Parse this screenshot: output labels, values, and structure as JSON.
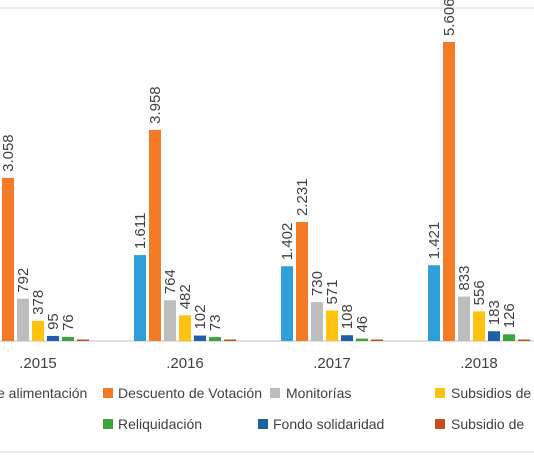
{
  "chart_data": {
    "type": "bar",
    "categories": [
      ".2015",
      ".2016",
      ".2017",
      ".2018"
    ],
    "series": [
      {
        "name": "Subsidio de alimentación",
        "legend_text": "e alimentación",
        "color": "#2E9FD8",
        "values": [
          null,
          1611,
          1402,
          1421
        ],
        "labels": [
          "",
          "1.611",
          "1.402",
          "1.421"
        ]
      },
      {
        "name": "Descuento de Votación",
        "legend_text": "Descuento de Votación",
        "color": "#F47B25",
        "values": [
          3058,
          3958,
          2231,
          5606
        ],
        "labels": [
          "3.058",
          "3.958",
          "2.231",
          "5.606"
        ]
      },
      {
        "name": "Monitorías",
        "legend_text": "Monitorías",
        "color": "#BDBDBD",
        "values": [
          792,
          764,
          730,
          833
        ],
        "labels": [
          "792",
          "764",
          "730",
          "833"
        ]
      },
      {
        "name": "Subsidios de",
        "legend_text": "Subsidios de",
        "color": "#FFC20E",
        "values": [
          378,
          482,
          571,
          556
        ],
        "labels": [
          "378",
          "482",
          "571",
          "556"
        ]
      },
      {
        "name": "Fondo solidaridad",
        "legend_text": "Fondo solidaridad",
        "color": "#1F5FA8",
        "values": [
          95,
          102,
          108,
          183
        ],
        "labels": [
          "95",
          "102",
          "108",
          "183"
        ]
      },
      {
        "name": "Reliquidación",
        "legend_text": "Reliquidación",
        "color": "#3BA53B",
        "values": [
          76,
          73,
          46,
          126
        ],
        "labels": [
          "76",
          "73",
          "46",
          "126"
        ]
      },
      {
        "name": "Subsidio de",
        "legend_text": "Subsidio de",
        "color": "#C0501A",
        "values": [
          10,
          10,
          10,
          12
        ],
        "labels": [
          "",
          "",
          "",
          ""
        ]
      }
    ],
    "ylim": [
      0,
      5606
    ],
    "grid": false,
    "legend_position": "bottom"
  }
}
